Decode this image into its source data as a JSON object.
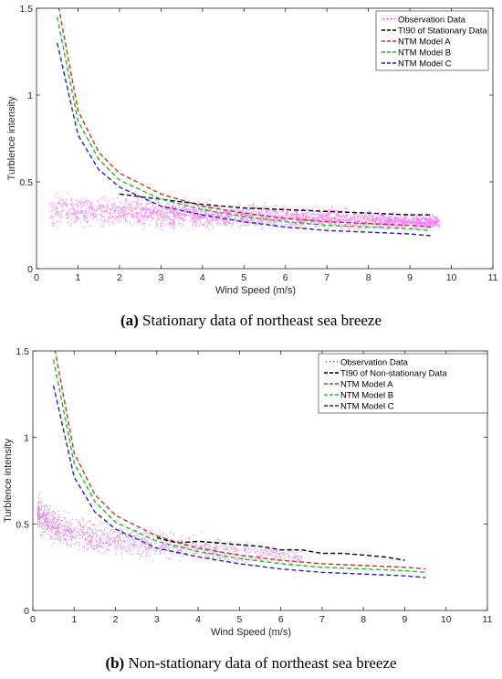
{
  "chart_data": [
    {
      "type": "scatter",
      "caption_letter": "(a)",
      "caption_text": "Stationary data of northeast sea breeze",
      "xlabel": "Wind Speed (m/s)",
      "ylabel": "Turblence intensity",
      "xlim": [
        0,
        11
      ],
      "ylim": [
        0,
        1.5
      ],
      "xticks": [
        "0",
        "1",
        "2",
        "3",
        "4",
        "5",
        "6",
        "7",
        "8",
        "9",
        "10",
        "11"
      ],
      "yticks": [
        "0",
        "0.5",
        "1",
        "1.5"
      ],
      "grid": false,
      "legend_position": "top-right",
      "legend": [
        {
          "label": "Observation Data",
          "color": "#cc00cc"
        },
        {
          "label": "TI90 of Stationary Data",
          "color": "#000000"
        },
        {
          "label": "NTM Model A",
          "color": "#c0392b"
        },
        {
          "label": "NTM Model B",
          "color": "#22bb22"
        },
        {
          "label": "NTM Model C",
          "color": "#1f1fdd"
        }
      ],
      "scatter_summary": {
        "x_range": [
          0.3,
          9.7
        ],
        "y_center_range": [
          0.34,
          0.27
        ],
        "color": "#ff00ff"
      },
      "series": [
        {
          "name": "TI90 of Stationary Data",
          "x": [
            2,
            3,
            4,
            5,
            6,
            7,
            8,
            9,
            9.5
          ],
          "y": [
            0.43,
            0.4,
            0.37,
            0.35,
            0.34,
            0.33,
            0.32,
            0.31,
            0.31
          ]
        },
        {
          "name": "NTM Model A",
          "x": [
            0.5,
            1,
            1.5,
            2,
            3,
            4,
            5,
            6,
            7,
            8,
            9,
            9.5
          ],
          "y": [
            1.55,
            0.91,
            0.67,
            0.55,
            0.43,
            0.36,
            0.32,
            0.29,
            0.27,
            0.26,
            0.25,
            0.24
          ]
        },
        {
          "name": "NTM Model B",
          "x": [
            0.5,
            1,
            1.5,
            2,
            3,
            4,
            5,
            6,
            7,
            8,
            9,
            9.5
          ],
          "y": [
            1.45,
            0.85,
            0.63,
            0.51,
            0.4,
            0.34,
            0.3,
            0.27,
            0.25,
            0.24,
            0.23,
            0.22
          ]
        },
        {
          "name": "NTM Model C",
          "x": [
            0.5,
            1,
            1.5,
            2,
            3,
            4,
            5,
            6,
            7,
            8,
            9,
            9.5
          ],
          "y": [
            1.3,
            0.77,
            0.57,
            0.47,
            0.36,
            0.31,
            0.27,
            0.24,
            0.22,
            0.21,
            0.2,
            0.19
          ]
        }
      ]
    },
    {
      "type": "scatter",
      "caption_letter": "(b)",
      "caption_text": "Non-stationary data of northeast sea breeze",
      "xlabel": "Wind Speed (m/s)",
      "ylabel": "Turblence intensity",
      "xlim": [
        0,
        11
      ],
      "ylim": [
        0,
        1.5
      ],
      "xticks": [
        "0",
        "1",
        "2",
        "3",
        "4",
        "5",
        "6",
        "7",
        "8",
        "9",
        "10",
        "11"
      ],
      "yticks": [
        "0",
        "0.5",
        "1",
        "1.5"
      ],
      "grid": false,
      "legend_position": "top-right",
      "legend": [
        {
          "label": "Observation Data",
          "color": "#cc00cc"
        },
        {
          "label": "TI90 of Non-stationary Data",
          "color": "#000000"
        },
        {
          "label": "NTM Model A",
          "color": "#c0392b"
        },
        {
          "label": "NTM Model B",
          "color": "#22bb22"
        },
        {
          "label": "NTM Model C",
          "color": "#1f1fdd"
        }
      ],
      "scatter_summary": {
        "x_range": [
          0.1,
          6.5
        ],
        "y_center_range": [
          0.4,
          0.3
        ],
        "color": "#cc33cc"
      },
      "series": [
        {
          "name": "TI90 of Non-stationary Data",
          "x": [
            3,
            3.5,
            4,
            4.5,
            5,
            5.5,
            6,
            6.5,
            7,
            7.5,
            8,
            8.5,
            9
          ],
          "y": [
            0.42,
            0.39,
            0.4,
            0.39,
            0.38,
            0.37,
            0.35,
            0.35,
            0.33,
            0.33,
            0.32,
            0.31,
            0.29
          ]
        },
        {
          "name": "NTM Model A",
          "x": [
            0.5,
            1,
            1.5,
            2,
            3,
            4,
            5,
            6,
            7,
            8,
            9,
            9.5
          ],
          "y": [
            1.55,
            0.91,
            0.67,
            0.55,
            0.43,
            0.36,
            0.32,
            0.29,
            0.27,
            0.26,
            0.25,
            0.24
          ]
        },
        {
          "name": "NTM Model B",
          "x": [
            0.5,
            1,
            1.5,
            2,
            3,
            4,
            5,
            6,
            7,
            8,
            9,
            9.5
          ],
          "y": [
            1.45,
            0.85,
            0.63,
            0.51,
            0.4,
            0.34,
            0.3,
            0.27,
            0.25,
            0.24,
            0.23,
            0.22
          ]
        },
        {
          "name": "NTM Model C",
          "x": [
            0.5,
            1,
            1.5,
            2,
            3,
            4,
            5,
            6,
            7,
            8,
            9,
            9.5
          ],
          "y": [
            1.3,
            0.77,
            0.57,
            0.47,
            0.36,
            0.31,
            0.27,
            0.24,
            0.22,
            0.21,
            0.2,
            0.19
          ]
        }
      ]
    }
  ]
}
